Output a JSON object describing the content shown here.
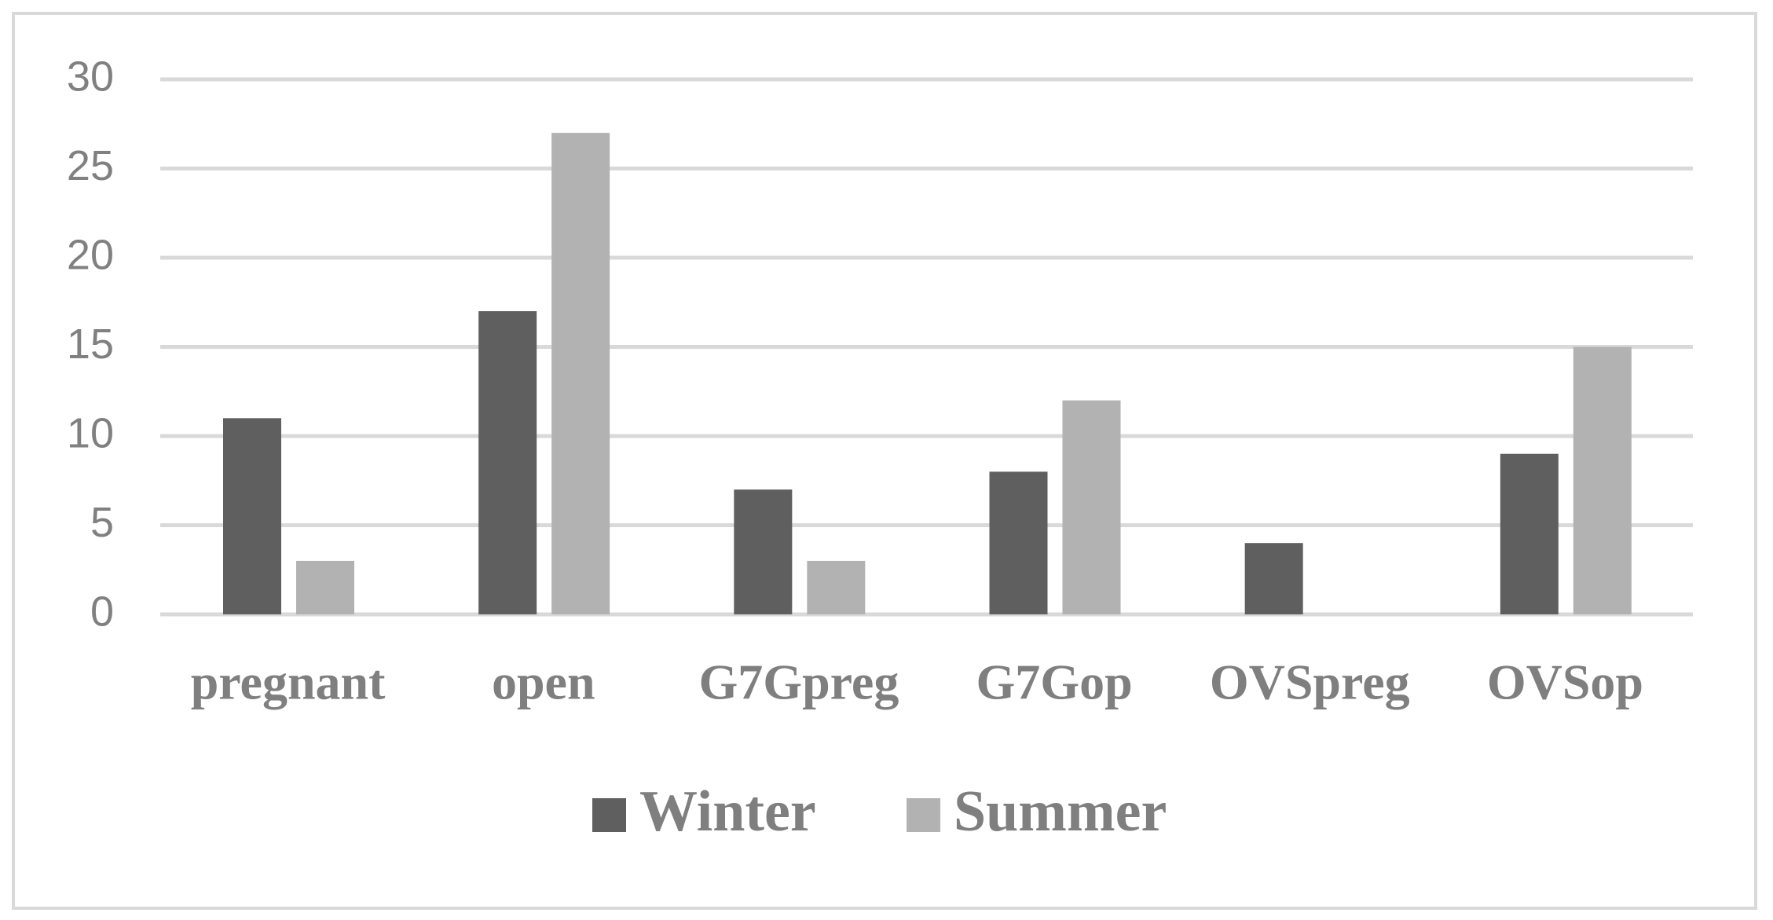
{
  "chart_data": {
    "type": "bar",
    "categories": [
      "pregnant",
      "open",
      "G7Gpreg",
      "G7Gop",
      "OVSpreg",
      "OVSop"
    ],
    "series": [
      {
        "name": "Winter",
        "color": "#5f5f5f",
        "values": [
          11,
          17,
          7,
          8,
          4,
          9
        ]
      },
      {
        "name": "Summer",
        "color": "#b2b2b2",
        "values": [
          3,
          27,
          3,
          12,
          0,
          15
        ]
      }
    ],
    "ylim": [
      0,
      30
    ],
    "yticks": [
      0,
      5,
      10,
      15,
      20,
      25,
      30
    ],
    "grid": true,
    "legend": "bottom"
  }
}
